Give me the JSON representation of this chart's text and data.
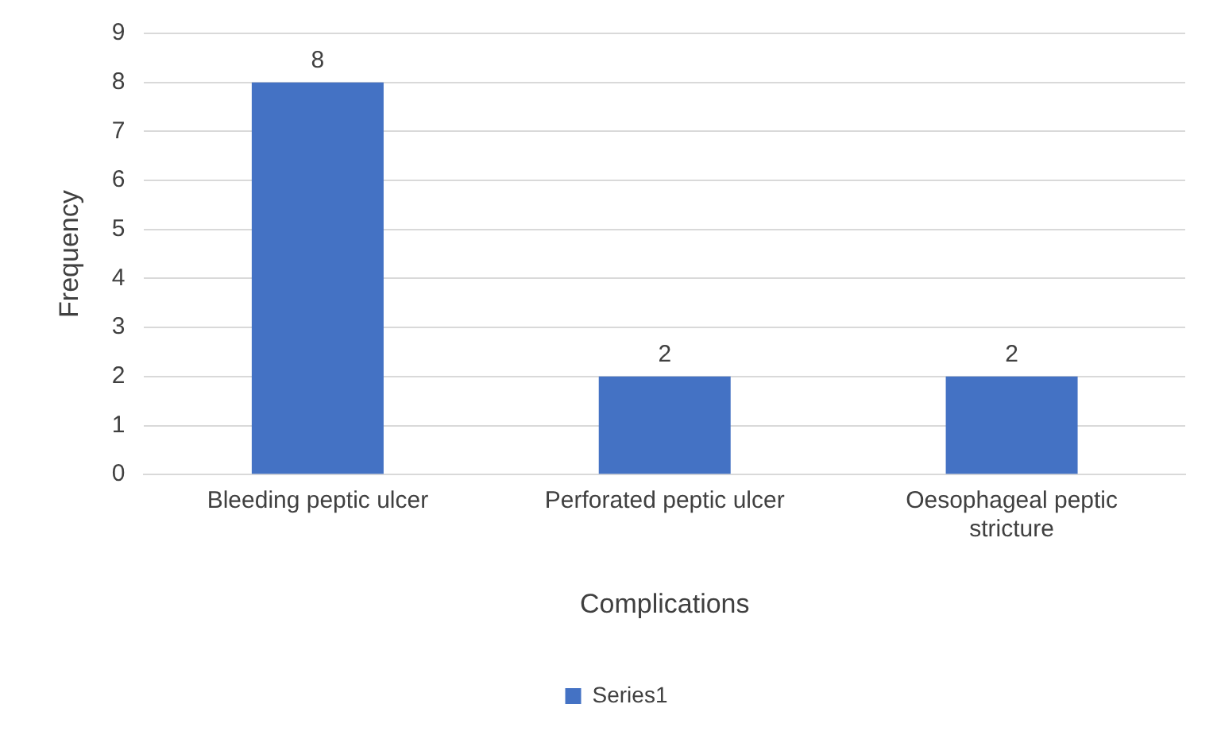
{
  "chart_data": {
    "type": "bar",
    "categories": [
      "Bleeding peptic ulcer",
      "Perforated peptic ulcer",
      "Oesophageal peptic stricture"
    ],
    "series": [
      {
        "name": "Series1",
        "color": "#4472c4",
        "values": [
          8,
          2,
          2
        ]
      }
    ],
    "xlabel": "Complications",
    "ylabel": "Frequency",
    "ylim": [
      0,
      9
    ],
    "yticks": [
      0,
      1,
      2,
      3,
      4,
      5,
      6,
      7,
      8,
      9
    ],
    "grid": "y",
    "legend": "bottom",
    "data_labels": true
  }
}
